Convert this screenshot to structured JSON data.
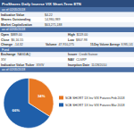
{
  "chart_data": {
    "type": "pie",
    "title": "ProShares Daily Inverse VIX Short-Term ETN",
    "categories": [
      "SCB SHORT 1X Inv VIX Futures Feb 2018",
      "SCB SHORT 1X Inv VIX Futures Mar 2018"
    ],
    "values": [
      34,
      66
    ],
    "value_labels": [
      "34%",
      "66%"
    ],
    "data_labels": true,
    "colors": [
      "#e87722",
      "#1f5faa"
    ],
    "legend": "right",
    "annotations": [
      [
        "as of 02/05/2018"
      ],
      [
        [
          "Indicative Value",
          "$4.22"
        ]
      ],
      [
        [
          "Shares Outstanding",
          "14,980,989"
        ]
      ],
      [
        [
          "Market Capitalization",
          "$63,271,188"
        ]
      ],
      [
        "as of 02/05/2018"
      ],
      [
        [
          "Open",
          "$889.00"
        ],
        [
          "High",
          "$119.00"
        ]
      ],
      [
        [
          "Close",
          "$6,16.55"
        ],
        [
          "Low",
          "$807.98"
        ]
      ],
      [
        [
          "Change",
          "-14.32"
        ],
        [
          "Volume",
          "47,910,275"
        ],
        [
          "15-Day Volume Average",
          "8,985,141"
        ]
      ],
      [
        "Fund"
      ],
      [
        [
          "Exchange",
          "NASDAQ"
        ],
        [
          "Issuer",
          "Credit Suisse"
        ]
      ],
      [
        [
          "XIV"
        ],
        [
          "NAV",
          "CLSRP"
        ]
      ],
      [
        [
          "Indicative Value Ticker",
          "XIVIV"
        ],
        [
          "Inception Date",
          "11/28/2010"
        ]
      ],
      [
        "as of 02/05/2018"
      ]
    ]
  }
}
